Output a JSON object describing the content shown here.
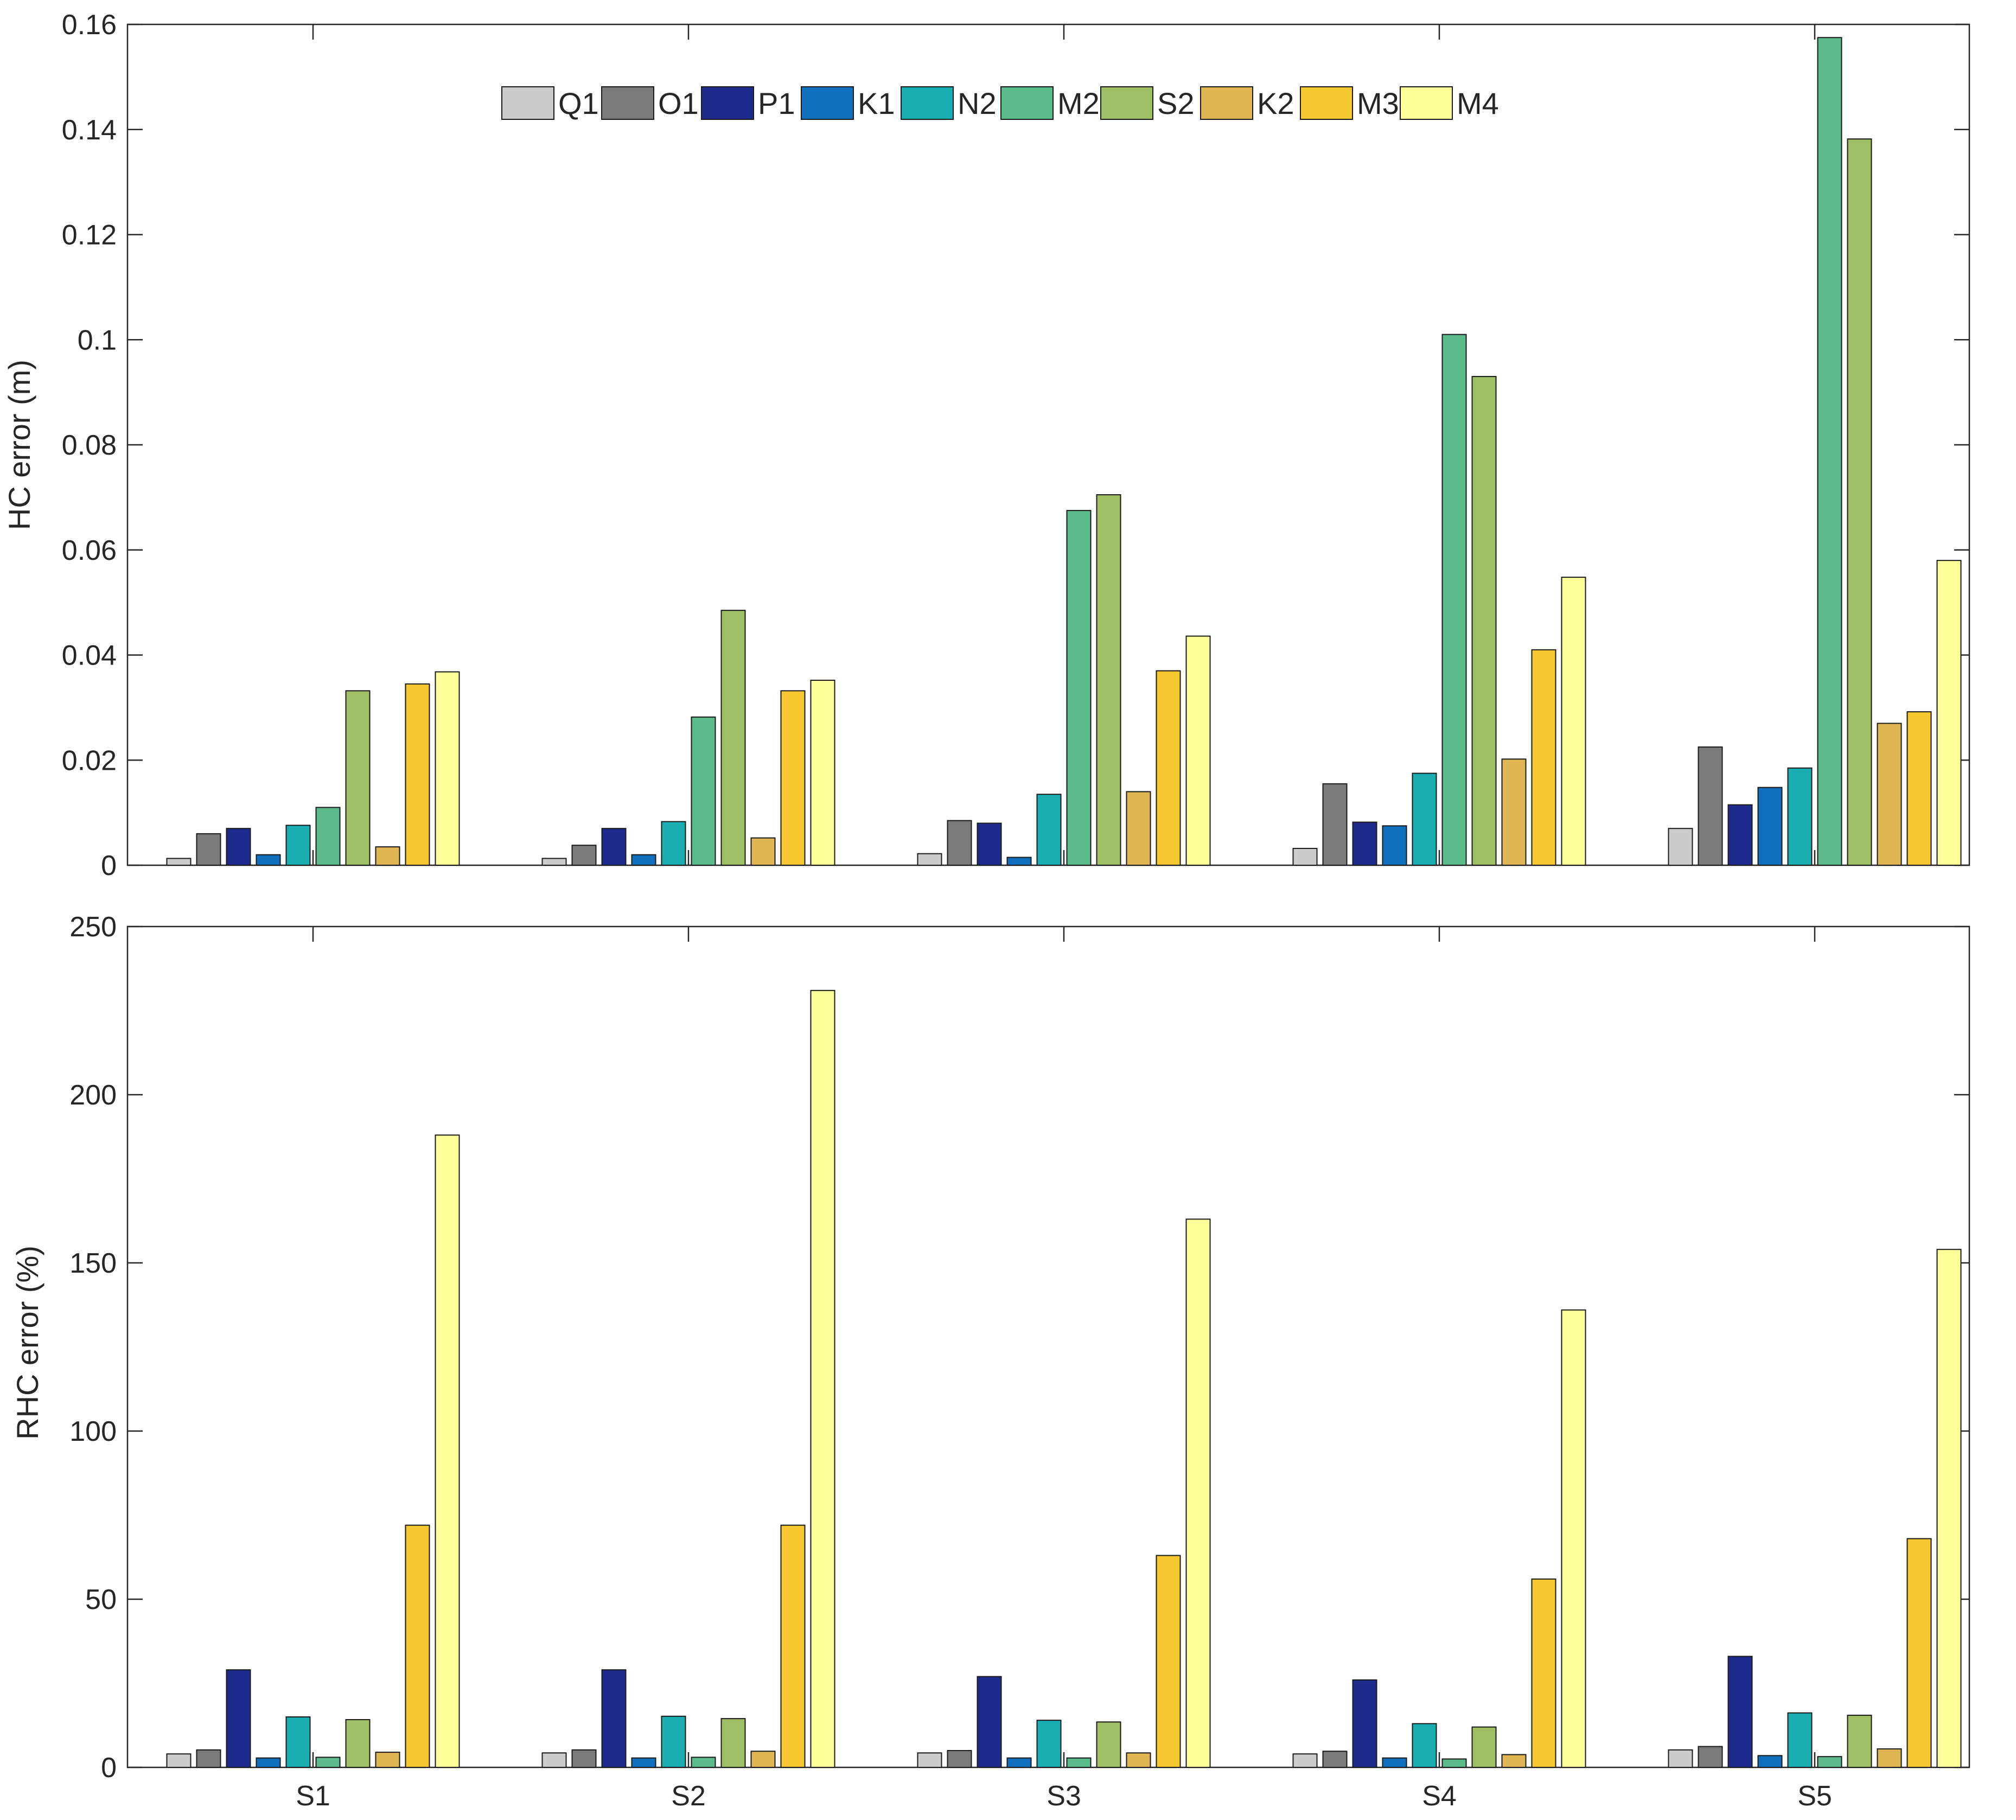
{
  "chart_data": [
    {
      "type": "bar",
      "panel": "top",
      "ylabel": "HC error (m)",
      "xlabel": "",
      "ylim": [
        0,
        0.16
      ],
      "yticks": [
        0,
        0.02,
        0.04,
        0.06,
        0.08,
        0.1,
        0.12,
        0.14,
        0.16
      ],
      "ytick_labels": [
        "0",
        "0.02",
        "0.04",
        "0.06",
        "0.08",
        "0.1",
        "0.12",
        "0.14",
        "0.16"
      ],
      "categories": [
        "S1",
        "S2",
        "S3",
        "S4",
        "S5"
      ],
      "show_category_labels": false,
      "legend": {
        "placement": "top-center",
        "orientation": "horizontal"
      },
      "series": [
        {
          "name": "Q1",
          "color": "#cccccc",
          "values": [
            0.0013,
            0.0013,
            0.0022,
            0.0032,
            0.007
          ]
        },
        {
          "name": "O1",
          "color": "#7a7a7a",
          "values": [
            0.006,
            0.0038,
            0.0085,
            0.0155,
            0.0225
          ]
        },
        {
          "name": "P1",
          "color": "#1d2b8c",
          "values": [
            0.007,
            0.007,
            0.008,
            0.0082,
            0.0115
          ]
        },
        {
          "name": "K1",
          "color": "#1070bd",
          "values": [
            0.002,
            0.002,
            0.0015,
            0.0075,
            0.0148
          ]
        },
        {
          "name": "N2",
          "color": "#1aaeb3",
          "values": [
            0.0076,
            0.0083,
            0.0135,
            0.0175,
            0.0185
          ]
        },
        {
          "name": "M2",
          "color": "#5bbb8b",
          "values": [
            0.011,
            0.0282,
            0.0675,
            0.101,
            0.1575
          ]
        },
        {
          "name": "S2",
          "color": "#9ebf64",
          "values": [
            0.0332,
            0.0485,
            0.0705,
            0.093,
            0.1382
          ]
        },
        {
          "name": "K2",
          "color": "#e0b655",
          "values": [
            0.0035,
            0.0052,
            0.014,
            0.0202,
            0.027
          ]
        },
        {
          "name": "M3",
          "color": "#f8c830",
          "values": [
            0.0345,
            0.0332,
            0.037,
            0.041,
            0.0292
          ]
        },
        {
          "name": "M4",
          "color": "#ffff99",
          "values": [
            0.0368,
            0.0352,
            0.0436,
            0.0548,
            0.058
          ]
        }
      ]
    },
    {
      "type": "bar",
      "panel": "bottom",
      "ylabel": "RHC error (%)",
      "xlabel": "",
      "ylim": [
        0,
        250
      ],
      "yticks": [
        0,
        50,
        100,
        150,
        200,
        250
      ],
      "ytick_labels": [
        "0",
        "50",
        "100",
        "150",
        "200",
        "250"
      ],
      "categories": [
        "S1",
        "S2",
        "S3",
        "S4",
        "S5"
      ],
      "show_category_labels": true,
      "series": [
        {
          "name": "Q1",
          "color": "#cccccc",
          "values": [
            4,
            4.3,
            4.3,
            4,
            5.2
          ]
        },
        {
          "name": "O1",
          "color": "#7a7a7a",
          "values": [
            5.2,
            5.2,
            5,
            4.8,
            6.2
          ]
        },
        {
          "name": "P1",
          "color": "#1d2b8c",
          "values": [
            29,
            29,
            27,
            26,
            33
          ]
        },
        {
          "name": "K1",
          "color": "#1070bd",
          "values": [
            2.8,
            2.8,
            2.8,
            2.8,
            3.5
          ]
        },
        {
          "name": "N2",
          "color": "#1aaeb3",
          "values": [
            15,
            15.2,
            14,
            13,
            16.2
          ]
        },
        {
          "name": "M2",
          "color": "#5bbb8b",
          "values": [
            3,
            3,
            2.8,
            2.5,
            3.2
          ]
        },
        {
          "name": "S2",
          "color": "#9ebf64",
          "values": [
            14.2,
            14.5,
            13.5,
            12,
            15.5
          ]
        },
        {
          "name": "K2",
          "color": "#e0b655",
          "values": [
            4.5,
            4.8,
            4.3,
            3.8,
            5.5
          ]
        },
        {
          "name": "M3",
          "color": "#f8c830",
          "values": [
            72,
            72,
            63,
            56,
            68
          ]
        },
        {
          "name": "M4",
          "color": "#ffff99",
          "values": [
            188,
            231,
            163,
            136,
            154
          ]
        }
      ]
    }
  ]
}
